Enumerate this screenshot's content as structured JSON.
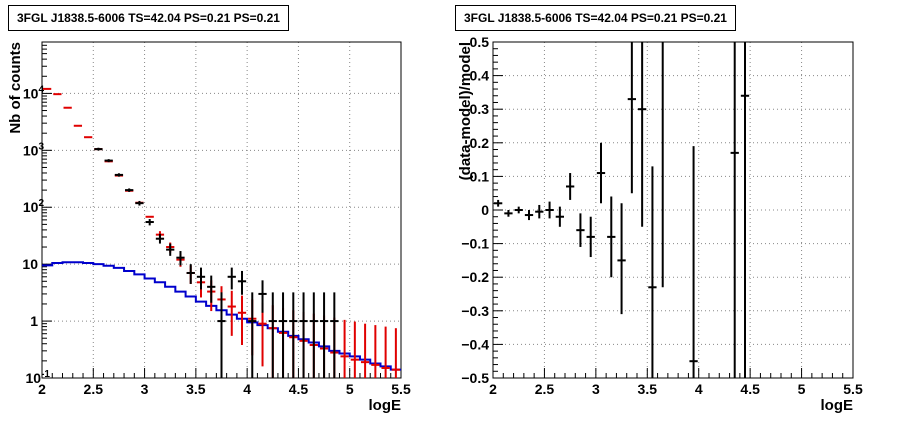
{
  "chart_data": [
    {
      "type": "histogram",
      "title": "3FGL J1838.5-6006 TS=42.04 PS=0.21 PS=0.21",
      "xlabel": "logE",
      "ylabel": "Nb of counts",
      "xlim": [
        2,
        5.5
      ],
      "ylim": [
        0.1,
        80000
      ],
      "yscale": "log",
      "grid": true,
      "x_ticks": [
        "2",
        "2.5",
        "3",
        "3.5",
        "4",
        "4.5",
        "5",
        "5.5"
      ],
      "y_ticks": [
        {
          "value": 0.1,
          "label": "10",
          "sup": "-1"
        },
        {
          "value": 1,
          "label": "1",
          "sup": ""
        },
        {
          "value": 10,
          "label": "10",
          "sup": ""
        },
        {
          "value": 100,
          "label": "10",
          "sup": "2"
        },
        {
          "value": 1000,
          "label": "10",
          "sup": "3"
        },
        {
          "value": 10000,
          "label": "10",
          "sup": "4"
        }
      ],
      "bin_edges_start": 2.0,
      "bin_width": 0.1,
      "series": [
        {
          "kind": "model_total",
          "color": "#e00000",
          "values": [
            12000,
            9700,
            5600,
            2700,
            1700,
            1050,
            640,
            360,
            195,
            120,
            68,
            33,
            20,
            12,
            7,
            4.8,
            3.3,
            2.4,
            1.8,
            1.4,
            1.1,
            0.9,
            0.75,
            0.62,
            0.52,
            0.45,
            0.38,
            0.33,
            0.28,
            0.24,
            0.21,
            0.19,
            0.17,
            0.15,
            0.14
          ],
          "err_low": [
            null,
            null,
            null,
            null,
            null,
            null,
            null,
            null,
            null,
            null,
            null,
            28,
            16,
            9,
            4.5,
            2.6,
            1.5,
            0.9,
            0.55,
            0.38,
            0.25,
            0.16,
            0.1,
            0.1,
            0.1,
            0.1,
            0.1,
            0.1,
            0.1,
            0.1,
            0.1,
            0.1,
            0.1,
            0.1,
            0.1
          ],
          "err_high": [
            null,
            null,
            null,
            null,
            null,
            null,
            null,
            null,
            null,
            null,
            null,
            38,
            24,
            15,
            9.5,
            7,
            5.2,
            4.1,
            3.4,
            2.8,
            2.4,
            2.1,
            1.9,
            1.7,
            1.55,
            1.45,
            1.35,
            1.25,
            1.15,
            1.05,
            0.98,
            0.9,
            0.85,
            0.8,
            0.75
          ]
        },
        {
          "kind": "data",
          "color": "#000000",
          "values": [
            null,
            null,
            null,
            null,
            null,
            1050,
            660,
            370,
            200,
            118,
            55,
            28,
            18,
            13,
            7,
            6,
            4,
            1,
            6,
            5,
            1,
            3,
            1,
            1,
            1,
            1,
            1,
            1,
            1,
            null,
            null,
            null,
            null,
            null,
            null
          ],
          "err_low": [
            null,
            null,
            null,
            null,
            null,
            990,
            620,
            345,
            186,
            107,
            48,
            23,
            14,
            9.5,
            4.5,
            3.6,
            2.1,
            0.1,
            3.6,
            2.9,
            0.1,
            1.4,
            0.1,
            0.1,
            0.1,
            0.1,
            0.1,
            0.1,
            0.1,
            null,
            null,
            null,
            null,
            null,
            null
          ],
          "err_high": [
            null,
            null,
            null,
            null,
            null,
            1110,
            700,
            395,
            214,
            129,
            62,
            34,
            23,
            17,
            10,
            8.7,
            6.3,
            3.2,
            8.7,
            7.6,
            3.2,
            5.2,
            3.2,
            3.2,
            3.2,
            3.2,
            3.2,
            3.2,
            3.2,
            null,
            null,
            null,
            null,
            null,
            null
          ]
        },
        {
          "kind": "background_model",
          "color": "#0000cc",
          "values": [
            9.5,
            10.5,
            10.8,
            10.8,
            10.5,
            10,
            9.4,
            8.6,
            7.6,
            6.6,
            5.6,
            4.8,
            4.0,
            3.3,
            2.7,
            2.2,
            1.85,
            1.55,
            1.3,
            1.1,
            0.95,
            0.85,
            0.75,
            0.65,
            0.55,
            0.48,
            0.42,
            0.36,
            0.3,
            0.27,
            0.24,
            0.21,
            0.18,
            0.16,
            0.14
          ]
        }
      ]
    },
    {
      "type": "scatter",
      "title": "3FGL J1838.5-6006 TS=42.04 PS=0.21 PS=0.21",
      "xlabel": "logE",
      "ylabel": "(data-model)/model",
      "xlim": [
        2,
        5.5
      ],
      "ylim": [
        -0.5,
        0.5
      ],
      "grid": true,
      "x_ticks": [
        "2",
        "2.5",
        "3",
        "3.5",
        "4",
        "4.5",
        "5",
        "5.5"
      ],
      "y_ticks": [
        "-0.5",
        "-0.4",
        "-0.3",
        "-0.2",
        "-0.1",
        "0",
        "0.1",
        "0.2",
        "0.3",
        "0.4",
        "0.5"
      ],
      "bin_width": 0.1,
      "points": [
        {
          "x": 2.05,
          "y": 0.02,
          "lo": 0.01,
          "hi": 0.03
        },
        {
          "x": 2.15,
          "y": -0.01,
          "lo": -0.02,
          "hi": 0.0
        },
        {
          "x": 2.25,
          "y": 0.0,
          "lo": -0.01,
          "hi": 0.01
        },
        {
          "x": 2.35,
          "y": -0.015,
          "lo": -0.03,
          "hi": 0.0
        },
        {
          "x": 2.45,
          "y": -0.005,
          "lo": -0.025,
          "hi": 0.015
        },
        {
          "x": 2.55,
          "y": 0.0,
          "lo": -0.025,
          "hi": 0.025
        },
        {
          "x": 2.65,
          "y": -0.02,
          "lo": -0.05,
          "hi": 0.01
        },
        {
          "x": 2.75,
          "y": 0.07,
          "lo": 0.03,
          "hi": 0.11
        },
        {
          "x": 2.85,
          "y": -0.06,
          "lo": -0.11,
          "hi": -0.01
        },
        {
          "x": 2.95,
          "y": -0.08,
          "lo": -0.14,
          "hi": -0.02
        },
        {
          "x": 3.05,
          "y": 0.11,
          "lo": 0.02,
          "hi": 0.2
        },
        {
          "x": 3.15,
          "y": -0.08,
          "lo": -0.2,
          "hi": 0.04
        },
        {
          "x": 3.25,
          "y": -0.15,
          "lo": -0.31,
          "hi": 0.02
        },
        {
          "x": 3.35,
          "y": 0.33,
          "lo": 0.05,
          "hi": 0.5
        },
        {
          "x": 3.45,
          "y": 0.3,
          "lo": -0.05,
          "hi": 0.5
        },
        {
          "x": 3.55,
          "y": -0.23,
          "lo": -0.5,
          "hi": 0.13
        },
        {
          "x": 3.65,
          "y": 0.5,
          "lo": -0.23,
          "hi": 0.5
        },
        {
          "x": 3.95,
          "y": -0.45,
          "lo": -0.5,
          "hi": 0.19
        },
        {
          "x": 4.35,
          "y": 0.17,
          "lo": -0.5,
          "hi": 0.5
        },
        {
          "x": 4.45,
          "y": 0.34,
          "lo": -0.5,
          "hi": 0.5
        }
      ]
    }
  ]
}
